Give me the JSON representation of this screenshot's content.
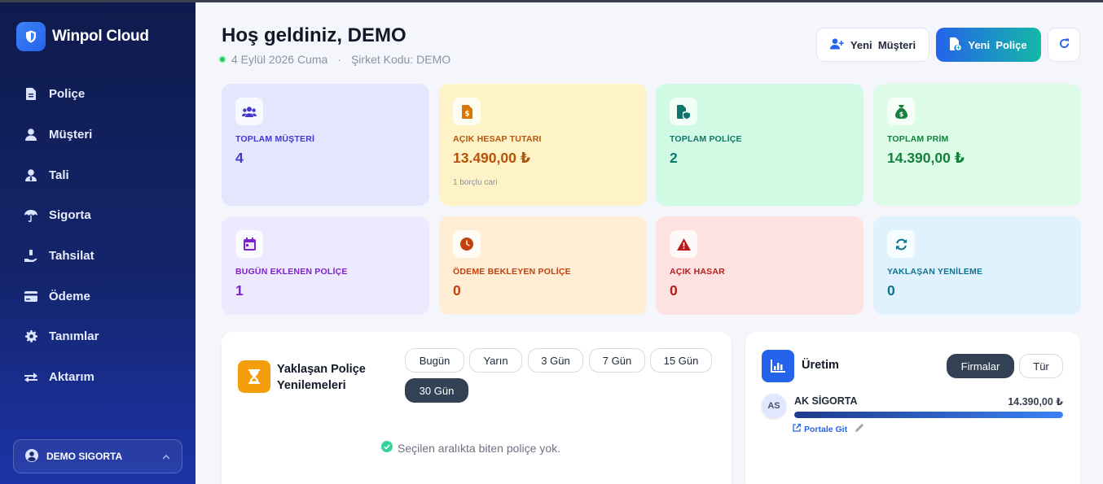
{
  "brand": {
    "name": "Winpol Cloud",
    "icon": "shield-icon"
  },
  "nav": [
    {
      "label": "Poliçe",
      "icon": "file-icon"
    },
    {
      "label": "Müşteri",
      "icon": "user-icon"
    },
    {
      "label": "Tali",
      "icon": "user-tie-icon"
    },
    {
      "label": "Sigorta",
      "icon": "umbrella-icon"
    },
    {
      "label": "Tahsilat",
      "icon": "hand-money-icon"
    },
    {
      "label": "Ödeme",
      "icon": "credit-card-icon"
    },
    {
      "label": "Tanımlar",
      "icon": "gear-icon"
    },
    {
      "label": "Aktarım",
      "icon": "transfer-icon"
    }
  ],
  "user": {
    "name": "DEMO SIGORTA"
  },
  "header": {
    "title": "Hoş geldiniz, DEMO",
    "date": "4 Eylül 2026 Cuma",
    "separator": "·",
    "company_code": "Şirket Kodu: DEMO",
    "new_customer": "Yeni  Müşteri",
    "new_policy": "Yeni  Poliçe"
  },
  "stats": [
    {
      "label": "TOPLAM MÜŞTERİ",
      "value": "4",
      "note": "",
      "icon": "users-icon"
    },
    {
      "label": "AÇIK HESAP TUTARI",
      "value": "13.490,00 ₺",
      "note": "1 borçlu cari",
      "icon": "invoice-dollar-icon"
    },
    {
      "label": "TOPLAM POLİÇE",
      "value": "2",
      "note": "",
      "icon": "file-shield-icon"
    },
    {
      "label": "TOPLAM PRİM",
      "value": "14.390,00 ₺",
      "note": "",
      "icon": "money-bag-icon"
    },
    {
      "label": "BUGÜN EKLENEN POLİÇE",
      "value": "1",
      "note": "",
      "icon": "calendar-icon"
    },
    {
      "label": "ÖDEME BEKLEYEN POLİÇE",
      "value": "0",
      "note": "",
      "icon": "clock-icon"
    },
    {
      "label": "AÇIK HASAR",
      "value": "0",
      "note": "",
      "icon": "warning-icon"
    },
    {
      "label": "YAKLAŞAN YENİLEME",
      "value": "0",
      "note": "",
      "icon": "sync-icon"
    }
  ],
  "colors": {
    "c0_bg": "#e3e6fd",
    "c0_fg": "#4338ca",
    "c1_bg": "#fef3c7",
    "c1_fg": "#b45309",
    "c2_bg": "#d1fae5",
    "c2_fg": "#0f766e",
    "c3_bg": "#dcfce7",
    "c3_fg": "#15803d",
    "c4_bg": "#ede9fe",
    "c4_fg": "#7e22ce",
    "c5_bg": "#ffedd5",
    "c5_fg": "#c2410c",
    "c6_bg": "#fee2e2",
    "c6_fg": "#b91c1c",
    "c7_bg": "#e0f2fe",
    "c7_fg": "#0e7490"
  },
  "renewals": {
    "title": "Yaklaşan Poliçe Yenilemeleri",
    "filters": [
      "Bugün",
      "Yarın",
      "3 Gün",
      "7 Gün",
      "15 Gün",
      "30 Gün"
    ],
    "active_filter": "30 Gün",
    "empty_message": "Seçilen aralıkta biten poliçe yok."
  },
  "production": {
    "title": "Üretim",
    "tabs": [
      "Firmalar",
      "Tür"
    ],
    "active_tab": "Firmalar",
    "items": [
      {
        "initials": "AS",
        "name": "AK SİGORTA",
        "amount": "14.390,00 ₺",
        "share": 1.0,
        "link": "Portale Git"
      }
    ]
  }
}
